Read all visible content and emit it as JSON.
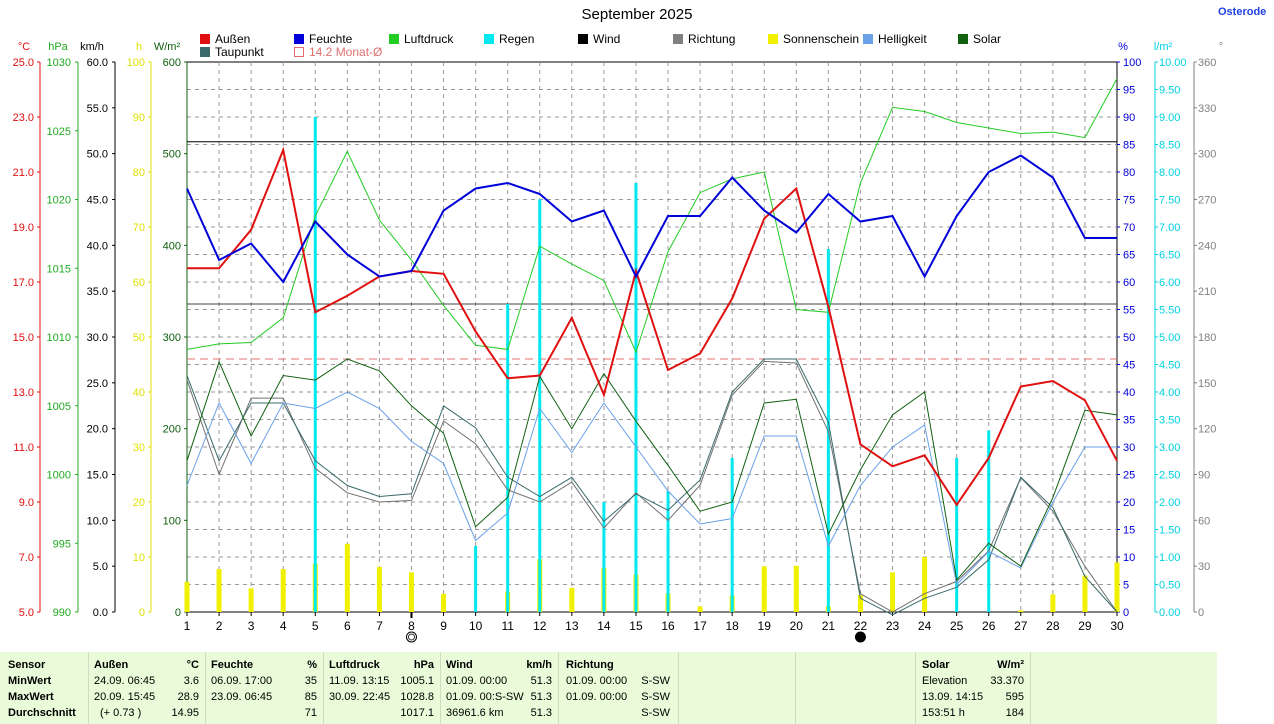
{
  "title": "September 2025",
  "site_label": "Osterode",
  "legend": [
    {
      "label": "Außen",
      "color": "#e01010"
    },
    {
      "label": "Feuchte",
      "color": "#0000d8"
    },
    {
      "label": "Luftdruck",
      "color": "#22cc22"
    },
    {
      "label": "Regen",
      "color": "#00e8f0"
    },
    {
      "label": "Wind",
      "color": "#000000"
    },
    {
      "label": "Richtung",
      "color": "#808080"
    },
    {
      "label": "Sonnenschein",
      "color": "#f0f000"
    },
    {
      "label": "Helligkeit",
      "color": "#6aa0e8"
    },
    {
      "label": "Solar",
      "color": "#106010"
    },
    {
      "label": "Taupunkt",
      "color": "#3a6a6a"
    },
    {
      "label": "14.2 Monat-Ø",
      "color": "#e07070"
    }
  ],
  "axes": {
    "temp": {
      "unit": "°C",
      "color": "#e01010",
      "ticks": [
        "25.0",
        "23.0",
        "21.0",
        "19.0",
        "17.0",
        "15.0",
        "13.0",
        "11.0",
        "9.0",
        "7.0",
        "5.0"
      ]
    },
    "pressure": {
      "unit": "hPa",
      "color": "#22aa22",
      "ticks": [
        "1030",
        "1025",
        "1020",
        "1015",
        "1010",
        "1005",
        "1000",
        "995",
        "990"
      ]
    },
    "wind": {
      "unit": "km/h",
      "color": "#000000",
      "ticks": [
        "60.0",
        "55.0",
        "50.0",
        "45.0",
        "40.0",
        "35.0",
        "30.0",
        "25.0",
        "20.0",
        "15.0",
        "10.0",
        "5.0",
        "0.0"
      ]
    },
    "sunshine": {
      "unit": "h",
      "color": "#e0e000",
      "ticks": [
        "100",
        "90",
        "80",
        "70",
        "60",
        "50",
        "40",
        "30",
        "20",
        "10",
        "0"
      ]
    },
    "solar": {
      "unit": "W/m²",
      "color": "#106010",
      "ticks": [
        "600",
        "500",
        "400",
        "300",
        "200",
        "100",
        "0"
      ]
    },
    "humidity": {
      "unit": "%",
      "color": "#0000d8",
      "ticks": [
        "100",
        "95",
        "90",
        "85",
        "80",
        "75",
        "70",
        "65",
        "60",
        "55",
        "50",
        "45",
        "40",
        "35",
        "30",
        "25",
        "20",
        "15",
        "10",
        "5",
        "0"
      ]
    },
    "rain": {
      "unit": "l/m²",
      "color": "#00d0e0",
      "ticks": [
        "10.00",
        "9.50",
        "9.00",
        "8.50",
        "8.00",
        "7.50",
        "7.00",
        "6.50",
        "6.00",
        "5.50",
        "5.00",
        "4.50",
        "4.00",
        "3.50",
        "3.00",
        "2.50",
        "2.00",
        "1.50",
        "1.00",
        "0.50",
        "0.00"
      ]
    },
    "direction": {
      "unit": "°",
      "color": "#808080",
      "ticks": [
        "360",
        "330",
        "300",
        "270",
        "240",
        "210",
        "180",
        "150",
        "120",
        "90",
        "60",
        "30",
        "0"
      ]
    }
  },
  "chart_data": {
    "type": "line",
    "x": [
      1,
      2,
      3,
      4,
      5,
      6,
      7,
      8,
      9,
      10,
      11,
      12,
      13,
      14,
      15,
      16,
      17,
      18,
      19,
      20,
      21,
      22,
      23,
      24,
      25,
      26,
      27,
      28,
      29,
      30
    ],
    "x_tick_labels": [
      "1",
      "2",
      "3",
      "4",
      "5",
      "6",
      "7",
      "8",
      "9",
      "10",
      "11",
      "12",
      "13",
      "14",
      "15",
      "16",
      "17",
      "18",
      "19",
      "20",
      "21",
      "22",
      "23",
      "24",
      "25",
      "26",
      "27",
      "28",
      "29",
      "30"
    ],
    "series": [
      {
        "name": "Außen",
        "axis": "temp",
        "color": "#e01010",
        "width": 2,
        "values": [
          17.5,
          17.5,
          18.9,
          21.8,
          15.9,
          16.5,
          17.2,
          17.4,
          17.3,
          15.2,
          13.5,
          13.6,
          15.7,
          12.9,
          17.4,
          13.8,
          14.4,
          16.4,
          19.3,
          20.4,
          16.1,
          11.1,
          10.3,
          10.7,
          8.9,
          10.6,
          13.2,
          13.4,
          12.7,
          10.5
        ]
      },
      {
        "name": "Feuchte",
        "axis": "humidity",
        "color": "#0000d8",
        "width": 2,
        "values": [
          77,
          64,
          67,
          60,
          71,
          65,
          61,
          62,
          73,
          77,
          78,
          76,
          71,
          73,
          61,
          72,
          72,
          79,
          73,
          69,
          76,
          71,
          72,
          61,
          72,
          80,
          83,
          79,
          68,
          68
        ]
      },
      {
        "name": "Luftdruck",
        "axis": "pressure",
        "color": "#22cc22",
        "width": 1,
        "values": [
          1009.1,
          1009.5,
          1009.6,
          1011.4,
          1018.8,
          1023.5,
          1018.5,
          1015.6,
          1012.3,
          1009.4,
          1009.1,
          1016.6,
          1015.3,
          1014.1,
          1008.9,
          1016.2,
          1020.5,
          1021.5,
          1022.0,
          1012.0,
          1011.8,
          1021.2,
          1026.7,
          1026.4,
          1025.6,
          1025.2,
          1024.8,
          1024.9,
          1024.5,
          1028.8
        ]
      },
      {
        "name": "Wind",
        "axis": "wind",
        "color": "#000000",
        "width": 1,
        "values": [
          51.3,
          51.3,
          51.3,
          51.3,
          51.3,
          51.3,
          51.3,
          51.3,
          51.3,
          51.3,
          51.3,
          51.3,
          51.3,
          51.3,
          51.3,
          51.3,
          51.3,
          51.3,
          51.3,
          51.3,
          51.3,
          51.3,
          51.3,
          51.3,
          51.3,
          51.3,
          51.3,
          51.3,
          51.3,
          51.3
        ]
      },
      {
        "name": "Richtung",
        "axis": "direction",
        "color": "#707070",
        "width": 1,
        "values": [
          152,
          90,
          140,
          140,
          94,
          78,
          72,
          73,
          125,
          110,
          80,
          72,
          85,
          55,
          78,
          60,
          83,
          142,
          164,
          163,
          118,
          12,
          0,
          12,
          20,
          40,
          88,
          66,
          30,
          0
        ]
      },
      {
        "name": "Helligkeit",
        "axis": "sunshine",
        "color": "#6aa0e8",
        "width": 1,
        "values": [
          23,
          38,
          27,
          38,
          37,
          40,
          37,
          31,
          27,
          13,
          18,
          37,
          29,
          38,
          30,
          22,
          16,
          17,
          32,
          32,
          12,
          23,
          30,
          34,
          5,
          11,
          8,
          20,
          30,
          30
        ]
      },
      {
        "name": "Solar",
        "axis": "solar",
        "color": "#106010",
        "width": 1,
        "values": [
          165,
          273,
          192,
          258,
          253,
          276,
          263,
          225,
          195,
          93,
          125,
          257,
          200,
          260,
          208,
          160,
          110,
          120,
          228,
          232,
          85,
          155,
          215,
          240,
          35,
          75,
          50,
          125,
          220,
          215
        ]
      },
      {
        "name": "Taupunkt",
        "axis": "temp",
        "color": "#3a6a6a",
        "width": 1,
        "values": [
          13.6,
          10.5,
          12.6,
          12.6,
          10.5,
          9.6,
          9.2,
          9.3,
          12.5,
          11.7,
          9.9,
          9.2,
          9.9,
          8.3,
          9.3,
          8.7,
          9.8,
          13.0,
          14.2,
          14.2,
          11.9,
          5.5,
          4.9,
          5.5,
          5.9,
          6.9,
          9.9,
          8.8,
          6.3,
          5.0
        ]
      }
    ],
    "bars": [
      {
        "name": "Sonnenschein",
        "axis": "sunshine",
        "color": "#f0f000",
        "width": 5,
        "values": [
          5.5,
          7.8,
          4.3,
          7.8,
          8.8,
          12.4,
          8.2,
          7.2,
          3.3,
          0.0,
          3.7,
          9.6,
          4.4,
          8.0,
          6.8,
          3.4,
          1.0,
          3.0,
          8.3,
          8.4,
          1.0,
          3.1,
          7.2,
          10.0,
          0.0,
          0.0,
          0.3,
          3.2,
          6.6,
          9.0
        ]
      },
      {
        "name": "Regen",
        "axis": "rain",
        "color": "#00e8f0",
        "width": 3,
        "values": [
          0,
          0,
          0,
          0,
          9.0,
          0,
          0,
          0,
          0,
          1.2,
          5.6,
          7.5,
          0,
          2.0,
          7.8,
          2.2,
          0,
          2.8,
          0,
          0,
          6.6,
          0,
          0,
          0,
          2.8,
          3.3,
          0,
          0,
          0,
          0
        ]
      }
    ],
    "reference_lines": [
      {
        "name": "14.2 Monat-Ø",
        "axis": "temp",
        "value": 14.2,
        "color": "#e07070",
        "dashed": true
      },
      {
        "axis": "wind",
        "value": 51.3,
        "color": "#000000",
        "dashed": false
      },
      {
        "axis": "humidity",
        "value": 56,
        "color": "#404040",
        "dashed": false
      }
    ],
    "markers": [
      {
        "x": 8,
        "symbol": "full-moon"
      },
      {
        "x": 22,
        "symbol": "new-moon"
      }
    ],
    "axis_ranges": {
      "temp": [
        5,
        25
      ],
      "pressure": [
        990,
        1030
      ],
      "wind": [
        0,
        60
      ],
      "sunshine": [
        0,
        100
      ],
      "solar": [
        0,
        600
      ],
      "humidity": [
        0,
        100
      ],
      "rain": [
        0,
        10
      ],
      "direction": [
        0,
        360
      ]
    },
    "grid": true
  },
  "stats": {
    "headers": {
      "sensor": "Sensor",
      "aussen": "Außen",
      "aussen_unit": "°C",
      "feuchte": "Feuchte",
      "feuchte_unit": "%",
      "luftdruck": "Luftdruck",
      "luftdruck_unit": "hPa",
      "wind": "Wind",
      "wind_unit": "km/h",
      "richtung": "Richtung",
      "solar": "Solar",
      "solar_unit": "W/m²"
    },
    "rows": [
      {
        "label": "MinWert",
        "aussen_t": "24.09.  06:45",
        "aussen_v": "3.6",
        "feuchte_t": "06.09.  17:00",
        "feuchte_v": "35",
        "luft_t": "11.09.  13:15",
        "luft_v": "1005.1",
        "wind_t": "01.09.  00:00",
        "wind_v": "51.3",
        "richt_t": "01.09.  00:00",
        "richt_v": "S-SW",
        "solar_t": "Elevation",
        "solar_v": "33.370"
      },
      {
        "label": "MaxWert",
        "aussen_t": "20.09.  15:45",
        "aussen_v": "28.9",
        "feuchte_t": "23.09.  06:45",
        "feuchte_v": "85",
        "luft_t": "30.09.  22:45",
        "luft_v": "1028.8",
        "wind_t": "01.09.  00:S-SW",
        "wind_v": "51.3",
        "richt_t": "01.09.  00:00",
        "richt_v": "S-SW",
        "solar_t": "13.09.  14:15",
        "solar_v": "595"
      },
      {
        "label": "Durchschnitt",
        "aussen_t": "(+ 0.73 )",
        "aussen_v": "14.95",
        "feuchte_t": "",
        "feuchte_v": "71",
        "luft_t": "",
        "luft_v": "1017.1",
        "wind_t": "36961.6 km",
        "wind_v": "51.3",
        "richt_t": "",
        "richt_v": "S-SW",
        "solar_t": "153:51 h",
        "solar_v": "184"
      }
    ]
  }
}
